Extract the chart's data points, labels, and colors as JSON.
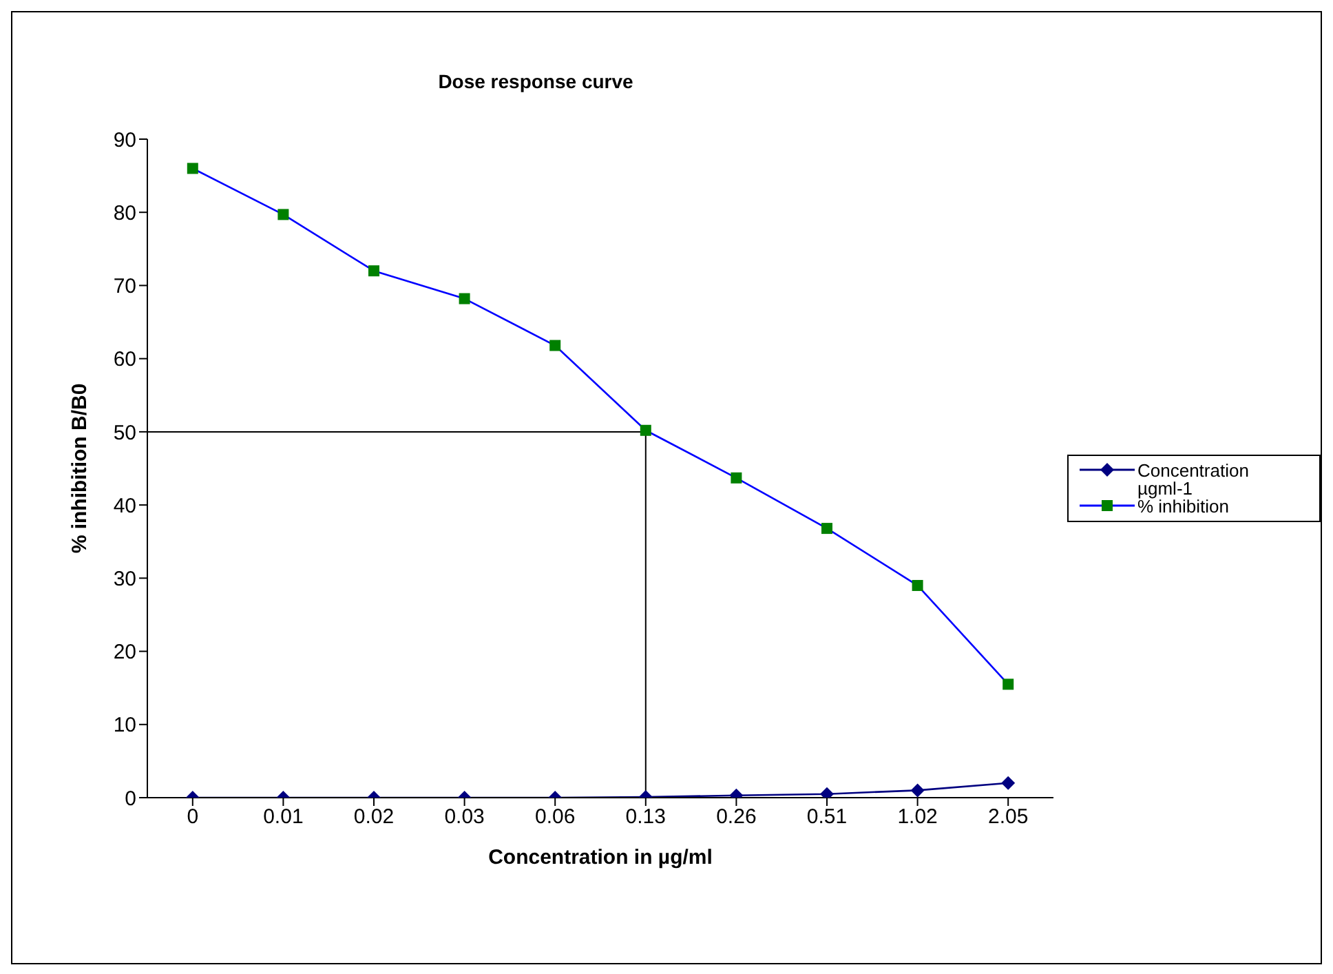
{
  "chart_data": {
    "type": "line",
    "title": "Dose response curve",
    "xlabel": "Concentration in µg/ml",
    "ylabel": "% inhibition B/B0",
    "categories": [
      "0",
      "0.01",
      "0.02",
      "0.03",
      "0.06",
      "0.13",
      "0.26",
      "0.51",
      "1.02",
      "2.05"
    ],
    "series": [
      {
        "name": "Concentration µgml-1",
        "color": "#000080",
        "marker": "diamond",
        "values": [
          0,
          0,
          0,
          0,
          0,
          0.1,
          0.3,
          0.5,
          1,
          2
        ]
      },
      {
        "name": "% inhibition",
        "color": "#0000ff",
        "marker": "square",
        "colors": [
          "#008000",
          "#008000",
          "#008000",
          "#008000",
          "#008000",
          "#008000",
          "#008000",
          "#008000",
          "#008000",
          "#008000"
        ],
        "values": [
          86,
          79.7,
          72,
          68.2,
          61.8,
          50.2,
          43.7,
          36.8,
          29,
          15.5
        ]
      }
    ],
    "ylim": [
      0,
      90
    ],
    "yticks": [
      0,
      10,
      20,
      30,
      40,
      50,
      60,
      70,
      80,
      90
    ],
    "ref_lines": [
      {
        "axis": "y",
        "value": 50,
        "color": "#000000"
      },
      {
        "axis": "x",
        "value": "0.13",
        "color": "#000000"
      }
    ],
    "grid": false,
    "legend": "right"
  }
}
